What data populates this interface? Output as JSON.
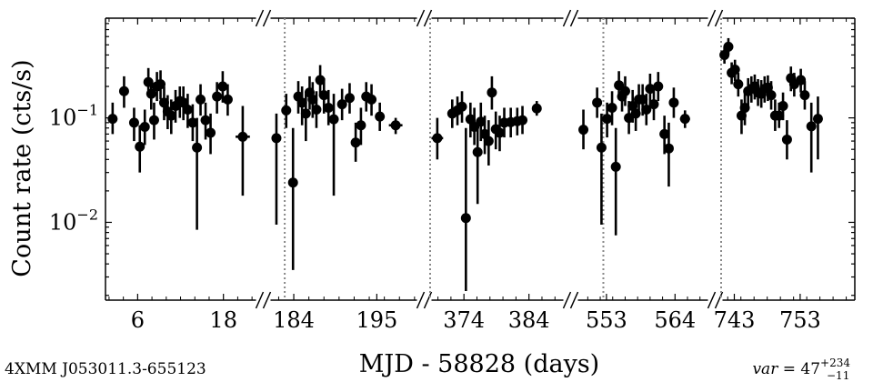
{
  "chart_data": {
    "type": "scatter",
    "source_name": "4XMM J053011.3-655123",
    "variability": {
      "prefix": "var",
      "value": "47",
      "upper": "+234",
      "lower": "−11"
    },
    "xlabel": "MJD - 58828 (days)",
    "ylabel": "Count rate (cts/s)",
    "yscale": "log",
    "ylim": [
      0.0018,
      0.9
    ],
    "yticks": [
      {
        "value": 0.1,
        "base": "10",
        "exp": "−1"
      },
      {
        "value": 0.01,
        "base": "10",
        "exp": "−2"
      }
    ],
    "broken_axis": true,
    "segments": [
      {
        "xlim": [
          1.5,
          23.0
        ],
        "xticks": [
          {
            "value": 6,
            "label": "6"
          },
          {
            "value": 18,
            "label": "18"
          }
        ],
        "dotted_line_at": null,
        "points": [
          {
            "x": 2.5,
            "y": 0.098,
            "lo": 0.07,
            "hi": 0.14
          },
          {
            "x": 4.1,
            "y": 0.18,
            "lo": 0.125,
            "hi": 0.25
          },
          {
            "x": 5.5,
            "y": 0.09,
            "lo": 0.06,
            "hi": 0.125
          },
          {
            "x": 6.3,
            "y": 0.053,
            "lo": 0.03,
            "hi": 0.085
          },
          {
            "x": 7.0,
            "y": 0.082,
            "lo": 0.055,
            "hi": 0.12
          },
          {
            "x": 7.5,
            "y": 0.22,
            "lo": 0.16,
            "hi": 0.3
          },
          {
            "x": 7.9,
            "y": 0.17,
            "lo": 0.12,
            "hi": 0.235
          },
          {
            "x": 8.3,
            "y": 0.095,
            "lo": 0.062,
            "hi": 0.14
          },
          {
            "x": 8.7,
            "y": 0.2,
            "lo": 0.145,
            "hi": 0.275
          },
          {
            "x": 9.2,
            "y": 0.21,
            "lo": 0.15,
            "hi": 0.285
          },
          {
            "x": 9.7,
            "y": 0.14,
            "lo": 0.095,
            "hi": 0.2
          },
          {
            "x": 10.2,
            "y": 0.115,
            "lo": 0.078,
            "hi": 0.165
          },
          {
            "x": 10.7,
            "y": 0.105,
            "lo": 0.07,
            "hi": 0.15
          },
          {
            "x": 11.3,
            "y": 0.13,
            "lo": 0.09,
            "hi": 0.185
          },
          {
            "x": 11.9,
            "y": 0.145,
            "lo": 0.1,
            "hi": 0.2
          },
          {
            "x": 12.4,
            "y": 0.14,
            "lo": 0.095,
            "hi": 0.2
          },
          {
            "x": 13.0,
            "y": 0.12,
            "lo": 0.08,
            "hi": 0.17
          },
          {
            "x": 13.7,
            "y": 0.09,
            "lo": 0.06,
            "hi": 0.135
          },
          {
            "x": 14.3,
            "y": 0.052,
            "lo": 0.0085,
            "hi": 0.1
          },
          {
            "x": 14.8,
            "y": 0.15,
            "lo": 0.105,
            "hi": 0.21
          },
          {
            "x": 15.5,
            "y": 0.095,
            "lo": 0.062,
            "hi": 0.14
          },
          {
            "x": 16.2,
            "y": 0.072,
            "lo": 0.045,
            "hi": 0.11
          },
          {
            "x": 17.1,
            "y": 0.16,
            "lo": 0.11,
            "hi": 0.22
          },
          {
            "x": 17.9,
            "y": 0.2,
            "lo": 0.14,
            "hi": 0.28
          },
          {
            "x": 18.6,
            "y": 0.15,
            "lo": 0.105,
            "hi": 0.21
          },
          {
            "x": 20.7,
            "y": 0.066,
            "lo": 0.018,
            "hi": 0.13,
            "xerr": 1.0
          }
        ]
      },
      {
        "xlim": [
          180.5,
          200.5
        ],
        "xticks": [
          {
            "value": 184,
            "label": "184"
          },
          {
            "value": 195,
            "label": "195"
          }
        ],
        "dotted_line_at": 182.8,
        "points": [
          {
            "x": 181.7,
            "y": 0.064,
            "lo": 0.0095,
            "hi": 0.11
          },
          {
            "x": 183.0,
            "y": 0.118,
            "lo": 0.08,
            "hi": 0.17
          },
          {
            "x": 183.9,
            "y": 0.024,
            "lo": 0.0035,
            "hi": 0.08
          },
          {
            "x": 184.6,
            "y": 0.16,
            "lo": 0.11,
            "hi": 0.225
          },
          {
            "x": 185.1,
            "y": 0.14,
            "lo": 0.085,
            "hi": 0.2
          },
          {
            "x": 185.6,
            "y": 0.11,
            "lo": 0.06,
            "hi": 0.17
          },
          {
            "x": 186.1,
            "y": 0.175,
            "lo": 0.12,
            "hi": 0.25
          },
          {
            "x": 186.5,
            "y": 0.15,
            "lo": 0.1,
            "hi": 0.22
          },
          {
            "x": 187.0,
            "y": 0.12,
            "lo": 0.08,
            "hi": 0.18
          },
          {
            "x": 187.5,
            "y": 0.23,
            "lo": 0.16,
            "hi": 0.32
          },
          {
            "x": 188.0,
            "y": 0.165,
            "lo": 0.11,
            "hi": 0.24
          },
          {
            "x": 188.6,
            "y": 0.125,
            "lo": 0.085,
            "hi": 0.185
          },
          {
            "x": 189.3,
            "y": 0.097,
            "lo": 0.018,
            "hi": 0.17
          },
          {
            "x": 190.4,
            "y": 0.135,
            "lo": 0.095,
            "hi": 0.19
          },
          {
            "x": 191.4,
            "y": 0.155,
            "lo": 0.11,
            "hi": 0.215
          },
          {
            "x": 192.2,
            "y": 0.058,
            "lo": 0.038,
            "hi": 0.09
          },
          {
            "x": 192.9,
            "y": 0.085,
            "lo": 0.055,
            "hi": 0.125
          },
          {
            "x": 193.6,
            "y": 0.16,
            "lo": 0.115,
            "hi": 0.22
          },
          {
            "x": 194.3,
            "y": 0.15,
            "lo": 0.105,
            "hi": 0.21
          },
          {
            "x": 195.4,
            "y": 0.103,
            "lo": 0.075,
            "hi": 0.14,
            "xerr": 0.5
          },
          {
            "x": 197.5,
            "y": 0.085,
            "lo": 0.07,
            "hi": 0.1,
            "xerr": 0.9
          }
        ]
      },
      {
        "xlim": [
          368.8,
          389.5
        ],
        "xticks": [
          {
            "value": 374,
            "label": "374"
          },
          {
            "value": 384,
            "label": "384"
          }
        ],
        "dotted_line_at": 368.8,
        "points": [
          {
            "x": 369.9,
            "y": 0.064,
            "lo": 0.04,
            "hi": 0.1,
            "xerr": 0.9
          },
          {
            "x": 372.2,
            "y": 0.11,
            "lo": 0.08,
            "hi": 0.15
          },
          {
            "x": 373.0,
            "y": 0.118,
            "lo": 0.085,
            "hi": 0.16
          },
          {
            "x": 373.7,
            "y": 0.128,
            "lo": 0.09,
            "hi": 0.18
          },
          {
            "x": 374.3,
            "y": 0.011,
            "lo": 0.0022,
            "hi": 0.08
          },
          {
            "x": 375.0,
            "y": 0.097,
            "lo": 0.065,
            "hi": 0.14
          },
          {
            "x": 375.6,
            "y": 0.082,
            "lo": 0.055,
            "hi": 0.125
          },
          {
            "x": 376.1,
            "y": 0.047,
            "lo": 0.015,
            "hi": 0.09
          },
          {
            "x": 376.6,
            "y": 0.092,
            "lo": 0.06,
            "hi": 0.14
          },
          {
            "x": 377.2,
            "y": 0.07,
            "lo": 0.045,
            "hi": 0.105
          },
          {
            "x": 377.8,
            "y": 0.06,
            "lo": 0.035,
            "hi": 0.095
          },
          {
            "x": 378.3,
            "y": 0.175,
            "lo": 0.12,
            "hi": 0.25
          },
          {
            "x": 378.9,
            "y": 0.078,
            "lo": 0.05,
            "hi": 0.115
          },
          {
            "x": 379.5,
            "y": 0.072,
            "lo": 0.048,
            "hi": 0.105
          },
          {
            "x": 380.2,
            "y": 0.09,
            "lo": 0.065,
            "hi": 0.125,
            "xerr": 0.4
          },
          {
            "x": 381.2,
            "y": 0.091,
            "lo": 0.065,
            "hi": 0.125,
            "xerr": 0.4
          },
          {
            "x": 382.2,
            "y": 0.093,
            "lo": 0.068,
            "hi": 0.125,
            "xerr": 0.4
          },
          {
            "x": 383.0,
            "y": 0.095,
            "lo": 0.07,
            "hi": 0.13
          },
          {
            "x": 385.2,
            "y": 0.123,
            "lo": 0.105,
            "hi": 0.145,
            "xerr": 0.6
          }
        ]
      },
      {
        "xlim": [
          548.2,
          569.5
        ],
        "xticks": [
          {
            "value": 553,
            "label": "553"
          },
          {
            "value": 564,
            "label": "564"
          }
        ],
        "dotted_line_at": 552.5,
        "points": [
          {
            "x": 549.3,
            "y": 0.077,
            "lo": 0.05,
            "hi": 0.12,
            "xerr": 0.4
          },
          {
            "x": 551.5,
            "y": 0.14,
            "lo": 0.1,
            "hi": 0.195
          },
          {
            "x": 552.2,
            "y": 0.052,
            "lo": 0.0095,
            "hi": 0.11
          },
          {
            "x": 553.1,
            "y": 0.098,
            "lo": 0.065,
            "hi": 0.14
          },
          {
            "x": 553.9,
            "y": 0.125,
            "lo": 0.085,
            "hi": 0.18
          },
          {
            "x": 554.5,
            "y": 0.034,
            "lo": 0.0075,
            "hi": 0.08
          },
          {
            "x": 555.0,
            "y": 0.205,
            "lo": 0.15,
            "hi": 0.28
          },
          {
            "x": 555.5,
            "y": 0.16,
            "lo": 0.115,
            "hi": 0.22
          },
          {
            "x": 556.0,
            "y": 0.18,
            "lo": 0.13,
            "hi": 0.25
          },
          {
            "x": 556.6,
            "y": 0.1,
            "lo": 0.07,
            "hi": 0.145
          },
          {
            "x": 557.2,
            "y": 0.13,
            "lo": 0.09,
            "hi": 0.185
          },
          {
            "x": 557.7,
            "y": 0.11,
            "lo": 0.075,
            "hi": 0.16
          },
          {
            "x": 558.2,
            "y": 0.15,
            "lo": 0.105,
            "hi": 0.21
          },
          {
            "x": 558.8,
            "y": 0.15,
            "lo": 0.105,
            "hi": 0.21
          },
          {
            "x": 559.4,
            "y": 0.12,
            "lo": 0.085,
            "hi": 0.17
          },
          {
            "x": 560.0,
            "y": 0.19,
            "lo": 0.135,
            "hi": 0.265
          },
          {
            "x": 560.6,
            "y": 0.135,
            "lo": 0.095,
            "hi": 0.19
          },
          {
            "x": 561.3,
            "y": 0.2,
            "lo": 0.145,
            "hi": 0.275
          },
          {
            "x": 562.3,
            "y": 0.07,
            "lo": 0.045,
            "hi": 0.105
          },
          {
            "x": 563.0,
            "y": 0.051,
            "lo": 0.022,
            "hi": 0.09
          },
          {
            "x": 563.8,
            "y": 0.14,
            "lo": 0.1,
            "hi": 0.195
          },
          {
            "x": 565.6,
            "y": 0.098,
            "lo": 0.08,
            "hi": 0.118,
            "xerr": 0.8
          }
        ]
      },
      {
        "xlim": [
          741.0,
          761.3
        ],
        "xticks": [
          {
            "value": 743,
            "label": "743"
          },
          {
            "value": 753,
            "label": "753"
          }
        ],
        "dotted_line_at": 741.0,
        "points": [
          {
            "x": 741.5,
            "y": 0.4,
            "lo": 0.33,
            "hi": 0.48
          },
          {
            "x": 742.1,
            "y": 0.48,
            "lo": 0.4,
            "hi": 0.58
          },
          {
            "x": 742.6,
            "y": 0.27,
            "lo": 0.21,
            "hi": 0.34
          },
          {
            "x": 743.1,
            "y": 0.29,
            "lo": 0.225,
            "hi": 0.36
          },
          {
            "x": 743.6,
            "y": 0.21,
            "lo": 0.16,
            "hi": 0.27
          },
          {
            "x": 744.1,
            "y": 0.105,
            "lo": 0.07,
            "hi": 0.15
          },
          {
            "x": 744.6,
            "y": 0.125,
            "lo": 0.085,
            "hi": 0.18
          },
          {
            "x": 745.1,
            "y": 0.18,
            "lo": 0.13,
            "hi": 0.24
          },
          {
            "x": 745.6,
            "y": 0.19,
            "lo": 0.14,
            "hi": 0.25
          },
          {
            "x": 746.1,
            "y": 0.2,
            "lo": 0.15,
            "hi": 0.26
          },
          {
            "x": 746.6,
            "y": 0.175,
            "lo": 0.13,
            "hi": 0.235
          },
          {
            "x": 747.1,
            "y": 0.17,
            "lo": 0.125,
            "hi": 0.23
          },
          {
            "x": 747.6,
            "y": 0.19,
            "lo": 0.14,
            "hi": 0.25
          },
          {
            "x": 748.1,
            "y": 0.195,
            "lo": 0.145,
            "hi": 0.255
          },
          {
            "x": 748.6,
            "y": 0.165,
            "lo": 0.12,
            "hi": 0.225
          },
          {
            "x": 749.2,
            "y": 0.105,
            "lo": 0.075,
            "hi": 0.15
          },
          {
            "x": 749.8,
            "y": 0.105,
            "lo": 0.08,
            "hi": 0.14
          },
          {
            "x": 750.4,
            "y": 0.13,
            "lo": 0.095,
            "hi": 0.175
          },
          {
            "x": 751.0,
            "y": 0.062,
            "lo": 0.04,
            "hi": 0.095
          },
          {
            "x": 751.6,
            "y": 0.24,
            "lo": 0.18,
            "hi": 0.31
          },
          {
            "x": 752.1,
            "y": 0.21,
            "lo": 0.16,
            "hi": 0.27
          },
          {
            "x": 753.1,
            "y": 0.23,
            "lo": 0.175,
            "hi": 0.295
          },
          {
            "x": 753.7,
            "y": 0.165,
            "lo": 0.12,
            "hi": 0.225
          },
          {
            "x": 754.7,
            "y": 0.083,
            "lo": 0.03,
            "hi": 0.14
          },
          {
            "x": 755.7,
            "y": 0.098,
            "lo": 0.04,
            "hi": 0.16
          }
        ]
      }
    ]
  }
}
